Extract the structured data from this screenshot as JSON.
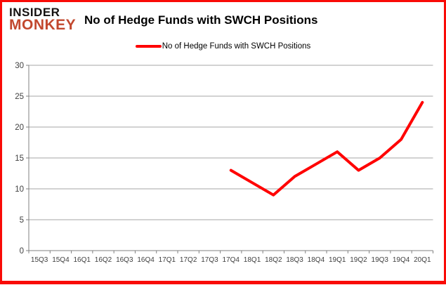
{
  "logo": {
    "line1": "INSIDER",
    "line2": "MONKEY"
  },
  "header": {
    "title": "No of Hedge Funds with SWCH Positions"
  },
  "legend": {
    "label": "No of Hedge Funds with SWCH Positions"
  },
  "colors": {
    "border": "#f90b07",
    "series_line": "#ff0000",
    "logo_insider": "#151110",
    "logo_monkey": "#c2482e",
    "gridline": "#a6a6a6",
    "axis": "#808080",
    "axis_text": "#3f3f3f"
  },
  "chart_data": {
    "type": "line",
    "title": "No of Hedge Funds with SWCH Positions",
    "xlabel": "",
    "ylabel": "",
    "categories": [
      "15Q3",
      "15Q4",
      "16Q1",
      "16Q2",
      "16Q3",
      "16Q4",
      "17Q1",
      "17Q2",
      "17Q3",
      "17Q4",
      "18Q1",
      "18Q2",
      "18Q3",
      "18Q4",
      "19Q1",
      "19Q2",
      "19Q3",
      "19Q4",
      "20Q1"
    ],
    "series": [
      {
        "name": "No of Hedge Funds with SWCH Positions",
        "color": "#ff0000",
        "values": [
          null,
          null,
          null,
          null,
          null,
          null,
          null,
          null,
          null,
          13,
          11,
          9,
          12,
          14,
          16,
          13,
          15,
          18,
          24
        ]
      }
    ],
    "ylim": [
      0,
      30
    ],
    "yticks": [
      0,
      5,
      10,
      15,
      20,
      25,
      30
    ],
    "grid": true,
    "legend_position": "top-center"
  }
}
